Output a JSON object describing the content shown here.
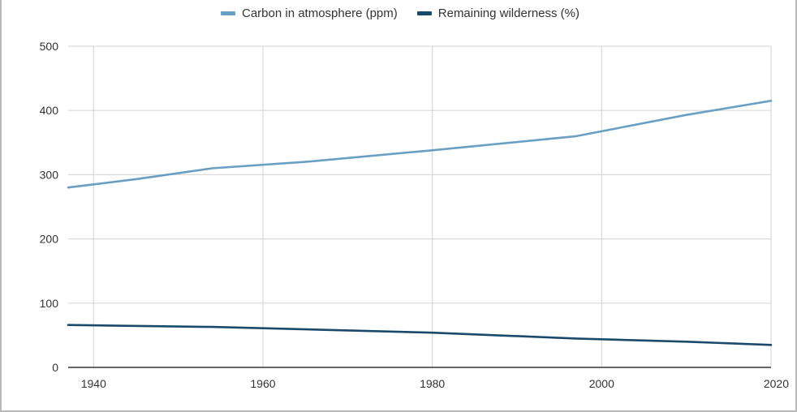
{
  "chart_data": {
    "type": "line",
    "title": "",
    "xlabel": "",
    "ylabel": "",
    "xlim": [
      1937,
      2020
    ],
    "ylim": [
      0,
      500
    ],
    "x_ticks": [
      1940,
      1960,
      1980,
      2000,
      2020
    ],
    "y_ticks": [
      0,
      100,
      200,
      300,
      400,
      500
    ],
    "grid": true,
    "legend_position": "top-center",
    "series": [
      {
        "name": "Carbon in atmosphere (ppm)",
        "color": "#6a9fc4",
        "x": [
          1937,
          1945,
          1954,
          1965,
          1980,
          1997,
          2010,
          2020
        ],
        "y": [
          280,
          293,
          310,
          320,
          338,
          360,
          393,
          415
        ]
      },
      {
        "name": "Remaining wilderness (%)",
        "color": "#1a4a6b",
        "x": [
          1937,
          1954,
          1960,
          1980,
          1997,
          2010,
          2020
        ],
        "y": [
          66,
          63,
          61,
          54,
          45,
          40,
          35
        ]
      }
    ]
  }
}
